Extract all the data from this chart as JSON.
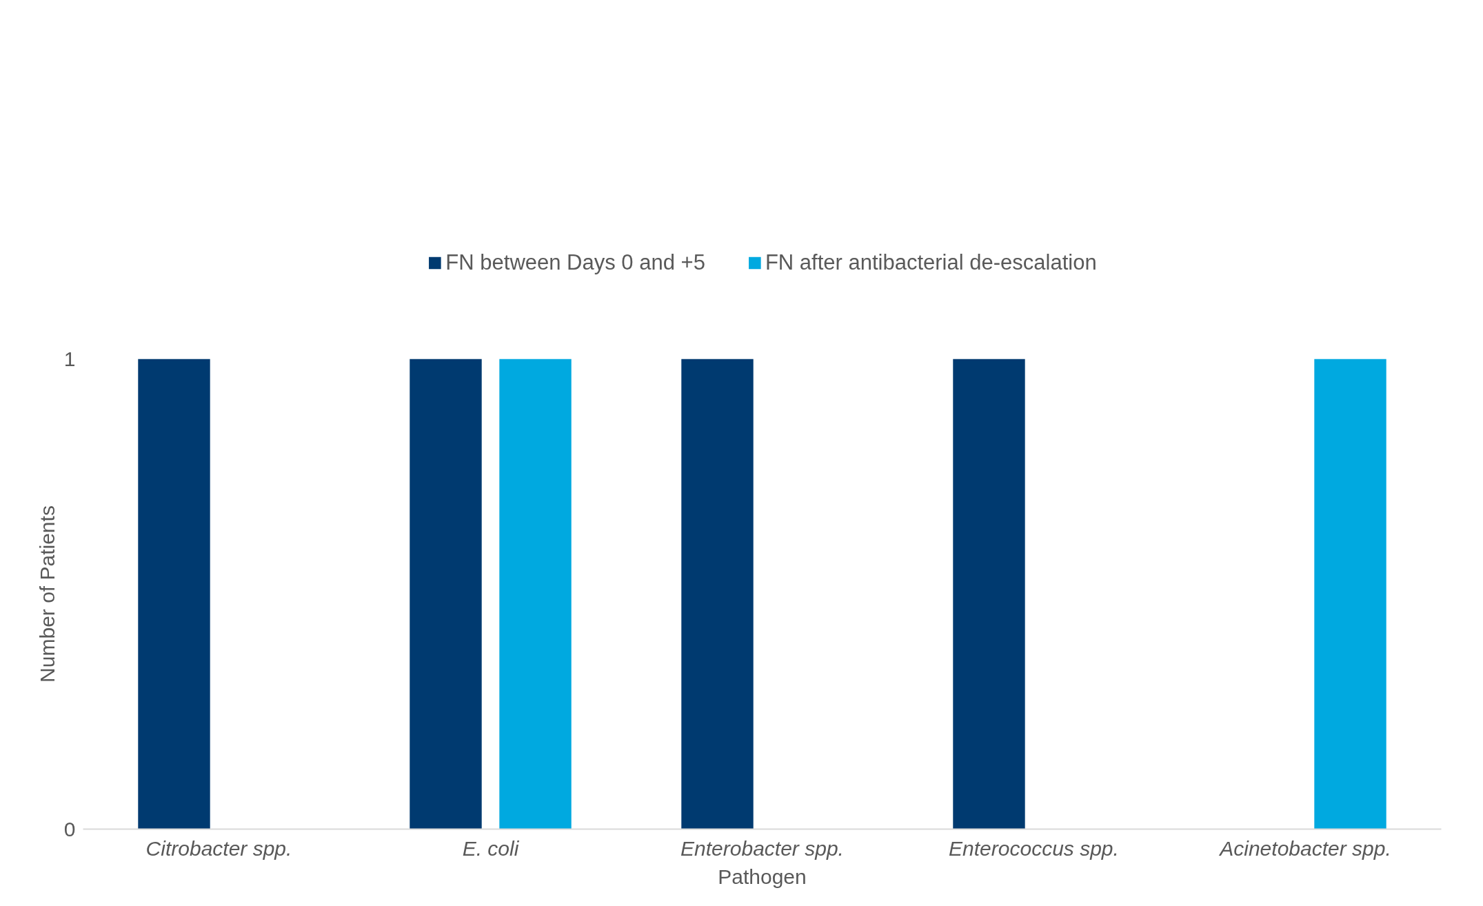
{
  "chart_data": {
    "type": "bar",
    "xlabel": "Pathogen",
    "ylabel": "Number of Patients",
    "categories": [
      "Citrobacter spp.",
      "E. coli",
      "Enterobacter spp.",
      "Enterococcus spp.",
      "Acinetobacter spp."
    ],
    "series": [
      {
        "name": "FN between Days 0 and +5",
        "color": "#003a70",
        "values": [
          1,
          1,
          1,
          1,
          0
        ]
      },
      {
        "name": "FN after antibacterial de-escalation",
        "color": "#00a9e0",
        "values": [
          0,
          1,
          0,
          0,
          1
        ]
      }
    ],
    "ylim": [
      0,
      1
    ],
    "yticks": [
      0,
      1
    ],
    "grid": false,
    "legend": "top"
  }
}
